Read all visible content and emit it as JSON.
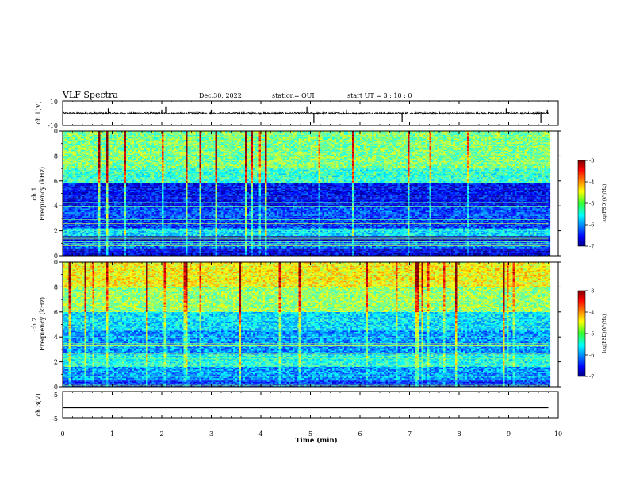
{
  "header": {
    "title": "VLF Spectra",
    "date": "Dec.30, 2022",
    "station": "station= OUI",
    "start": "start  UT =   3  : 10 : 0"
  },
  "chart_data": [
    {
      "type": "line",
      "name": "ch1-waveform",
      "ylabel": "ch.1(V)",
      "ylim": [
        -10,
        10
      ],
      "yticks": [
        "10",
        "-10"
      ],
      "xlim": [
        0,
        10
      ],
      "baseline": 0,
      "data_end_min": 9.8,
      "spikes": [
        {
          "x": 0.92,
          "y": 4
        },
        {
          "x": 2.0,
          "y": 3
        },
        {
          "x": 2.08,
          "y": 5
        },
        {
          "x": 3.0,
          "y": 3
        },
        {
          "x": 4.93,
          "y": 5
        },
        {
          "x": 5.07,
          "y": -8
        },
        {
          "x": 5.73,
          "y": 3
        },
        {
          "x": 6.85,
          "y": -7
        },
        {
          "x": 8.95,
          "y": 4
        },
        {
          "x": 9.65,
          "y": -8
        },
        {
          "x": 9.78,
          "y": 3
        }
      ]
    },
    {
      "type": "heatmap",
      "name": "ch1-spectrogram",
      "ylabel": "ch.1\nFrequency (kHz)",
      "ylim": [
        0,
        10
      ],
      "yticks": [
        "0",
        "2",
        "4",
        "6",
        "8",
        "10"
      ],
      "xlim": [
        0,
        10
      ],
      "data_end_min": 9.8,
      "colorbar": {
        "label": "log(PSD)(V²/Hz)",
        "range": [
          -7,
          -3
        ],
        "ticks": [
          "-3",
          "-4",
          "-5",
          "-6",
          "-7"
        ]
      },
      "band_levels": [
        {
          "f": [
            0,
            0.6
          ],
          "v": -6.6
        },
        {
          "f": [
            0.6,
            1.2
          ],
          "v": -6.1
        },
        {
          "f": [
            1.2,
            1.6
          ],
          "v": -6.7
        },
        {
          "f": [
            1.6,
            2.2
          ],
          "v": -5.6
        },
        {
          "f": [
            2.2,
            3.0
          ],
          "v": -6.3
        },
        {
          "f": [
            3.0,
            4.0
          ],
          "v": -6.2
        },
        {
          "f": [
            4.0,
            5.8
          ],
          "v": -6.5
        },
        {
          "f": [
            5.8,
            7.0
          ],
          "v": -5.3
        },
        {
          "f": [
            7.0,
            10.0
          ],
          "v": -5.0
        }
      ]
    },
    {
      "type": "heatmap",
      "name": "ch2-spectrogram",
      "ylabel": "ch.2\nFrequency (kHz)",
      "ylim": [
        0,
        10
      ],
      "yticks": [
        "0",
        "2",
        "4",
        "6",
        "8",
        "10"
      ],
      "xlim": [
        0,
        10
      ],
      "data_end_min": 9.8,
      "colorbar": {
        "label": "log(PSD)(V²/Hz)",
        "range": [
          -7,
          -3
        ],
        "ticks": [
          "-3",
          "-4",
          "-5",
          "-6",
          "-7"
        ]
      },
      "band_levels": [
        {
          "f": [
            0,
            0.5
          ],
          "v": -6.3
        },
        {
          "f": [
            0.5,
            1.6
          ],
          "v": -5.9
        },
        {
          "f": [
            1.6,
            2.6
          ],
          "v": -5.4
        },
        {
          "f": [
            2.6,
            4.5
          ],
          "v": -5.9
        },
        {
          "f": [
            4.5,
            6.0
          ],
          "v": -5.6
        },
        {
          "f": [
            6.0,
            8.0
          ],
          "v": -4.9
        },
        {
          "f": [
            8.0,
            10.0
          ],
          "v": -4.5
        }
      ]
    },
    {
      "type": "line",
      "name": "ch3-waveform",
      "ylabel": "ch.3(V)",
      "ylim": [
        -5,
        5
      ],
      "yticks": [
        "5",
        "-5"
      ],
      "xlim": [
        0,
        10
      ],
      "baseline": -1.2,
      "data_end_min": 9.8,
      "xlabel": "Time (min)",
      "xticks": [
        "0",
        "1",
        "2",
        "3",
        "4",
        "5",
        "6",
        "7",
        "8",
        "9",
        "10"
      ]
    }
  ]
}
